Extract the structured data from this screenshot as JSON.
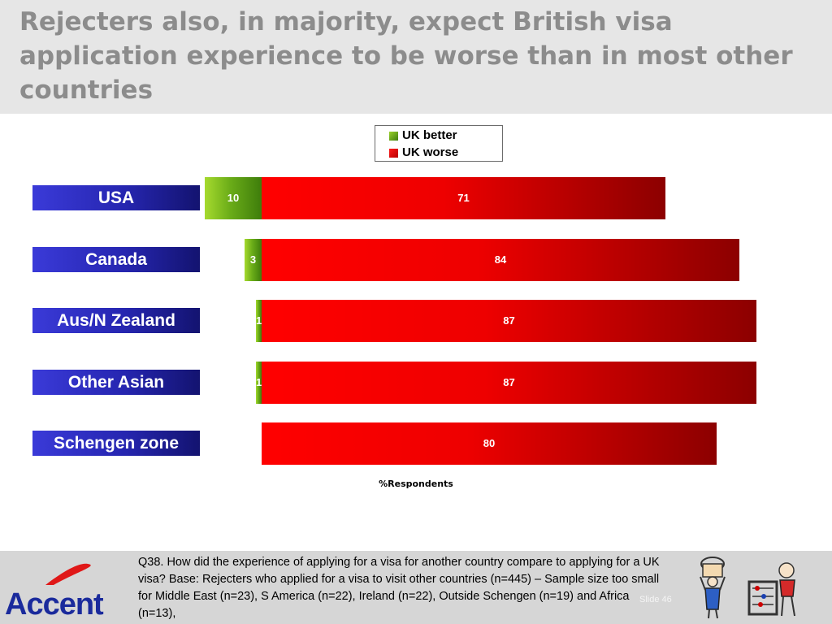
{
  "title": "Rejecters also, in majority, expect British visa application experience to be worse than in most other countries",
  "legend": {
    "better": "UK better",
    "worse": "UK worse"
  },
  "colors": {
    "better": "#6aac18",
    "worse": "#ee0000",
    "label_bg": "#2626b0"
  },
  "chart_data": {
    "type": "bar",
    "orientation": "horizontal",
    "stacked": "diverging",
    "categories": [
      "USA",
      "Canada",
      "Aus/N Zealand",
      "Other Asian",
      "Schengen zone"
    ],
    "series": [
      {
        "name": "UK better",
        "values": [
          10,
          3,
          1,
          1,
          null
        ]
      },
      {
        "name": "UK worse",
        "values": [
          71,
          84,
          87,
          87,
          80
        ]
      }
    ],
    "xlabel": "%Respondents",
    "legend_position": "top-center",
    "grid": false
  },
  "footnote": "Q38. How did the experience of applying for a visa for another country compare to applying for a UK visa? Base: Rejecters who applied for a visa to visit other countries (n=445) – Sample size too small for Middle East (n=23), S America (n=22), Ireland (n=22), Outside Schengen (n=19) and Africa (n=13),",
  "slide_number": "Slide 46",
  "logo_text": "Accent"
}
